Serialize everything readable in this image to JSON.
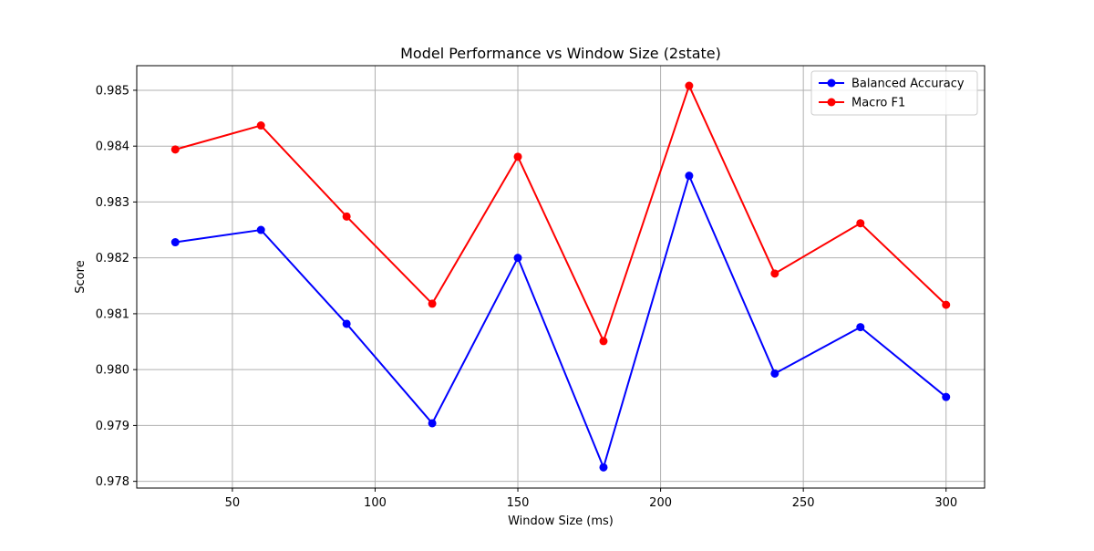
{
  "chart_data": {
    "type": "line",
    "title": "Model Performance vs Window Size (2state)",
    "xlabel": "Window Size (ms)",
    "ylabel": "Score",
    "x": [
      30,
      60,
      90,
      120,
      150,
      180,
      210,
      240,
      270,
      300
    ],
    "xlim": [
      16.5,
      313.5
    ],
    "ylim": [
      0.97788,
      0.98544
    ],
    "xticks": [
      50,
      100,
      150,
      200,
      250,
      300
    ],
    "yticks": [
      0.978,
      0.979,
      0.98,
      0.981,
      0.982,
      0.983,
      0.984,
      0.985
    ],
    "xtick_labels": [
      "50",
      "100",
      "150",
      "200",
      "250",
      "300"
    ],
    "ytick_labels": [
      "0.978",
      "0.979",
      "0.980",
      "0.981",
      "0.982",
      "0.983",
      "0.984",
      "0.985"
    ],
    "grid": true,
    "legend_position": "top-right",
    "series": [
      {
        "name": "Balanced Accuracy",
        "color": "#0000ff",
        "marker": "circle",
        "values": [
          0.98228,
          0.9825,
          0.98082,
          0.97904,
          0.982,
          0.97825,
          0.98347,
          0.97993,
          0.98076,
          0.97951
        ]
      },
      {
        "name": "Macro F1",
        "color": "#ff0000",
        "marker": "circle",
        "values": [
          0.98394,
          0.98437,
          0.98274,
          0.98118,
          0.98381,
          0.98051,
          0.98508,
          0.98172,
          0.98262,
          0.98116
        ]
      }
    ]
  }
}
